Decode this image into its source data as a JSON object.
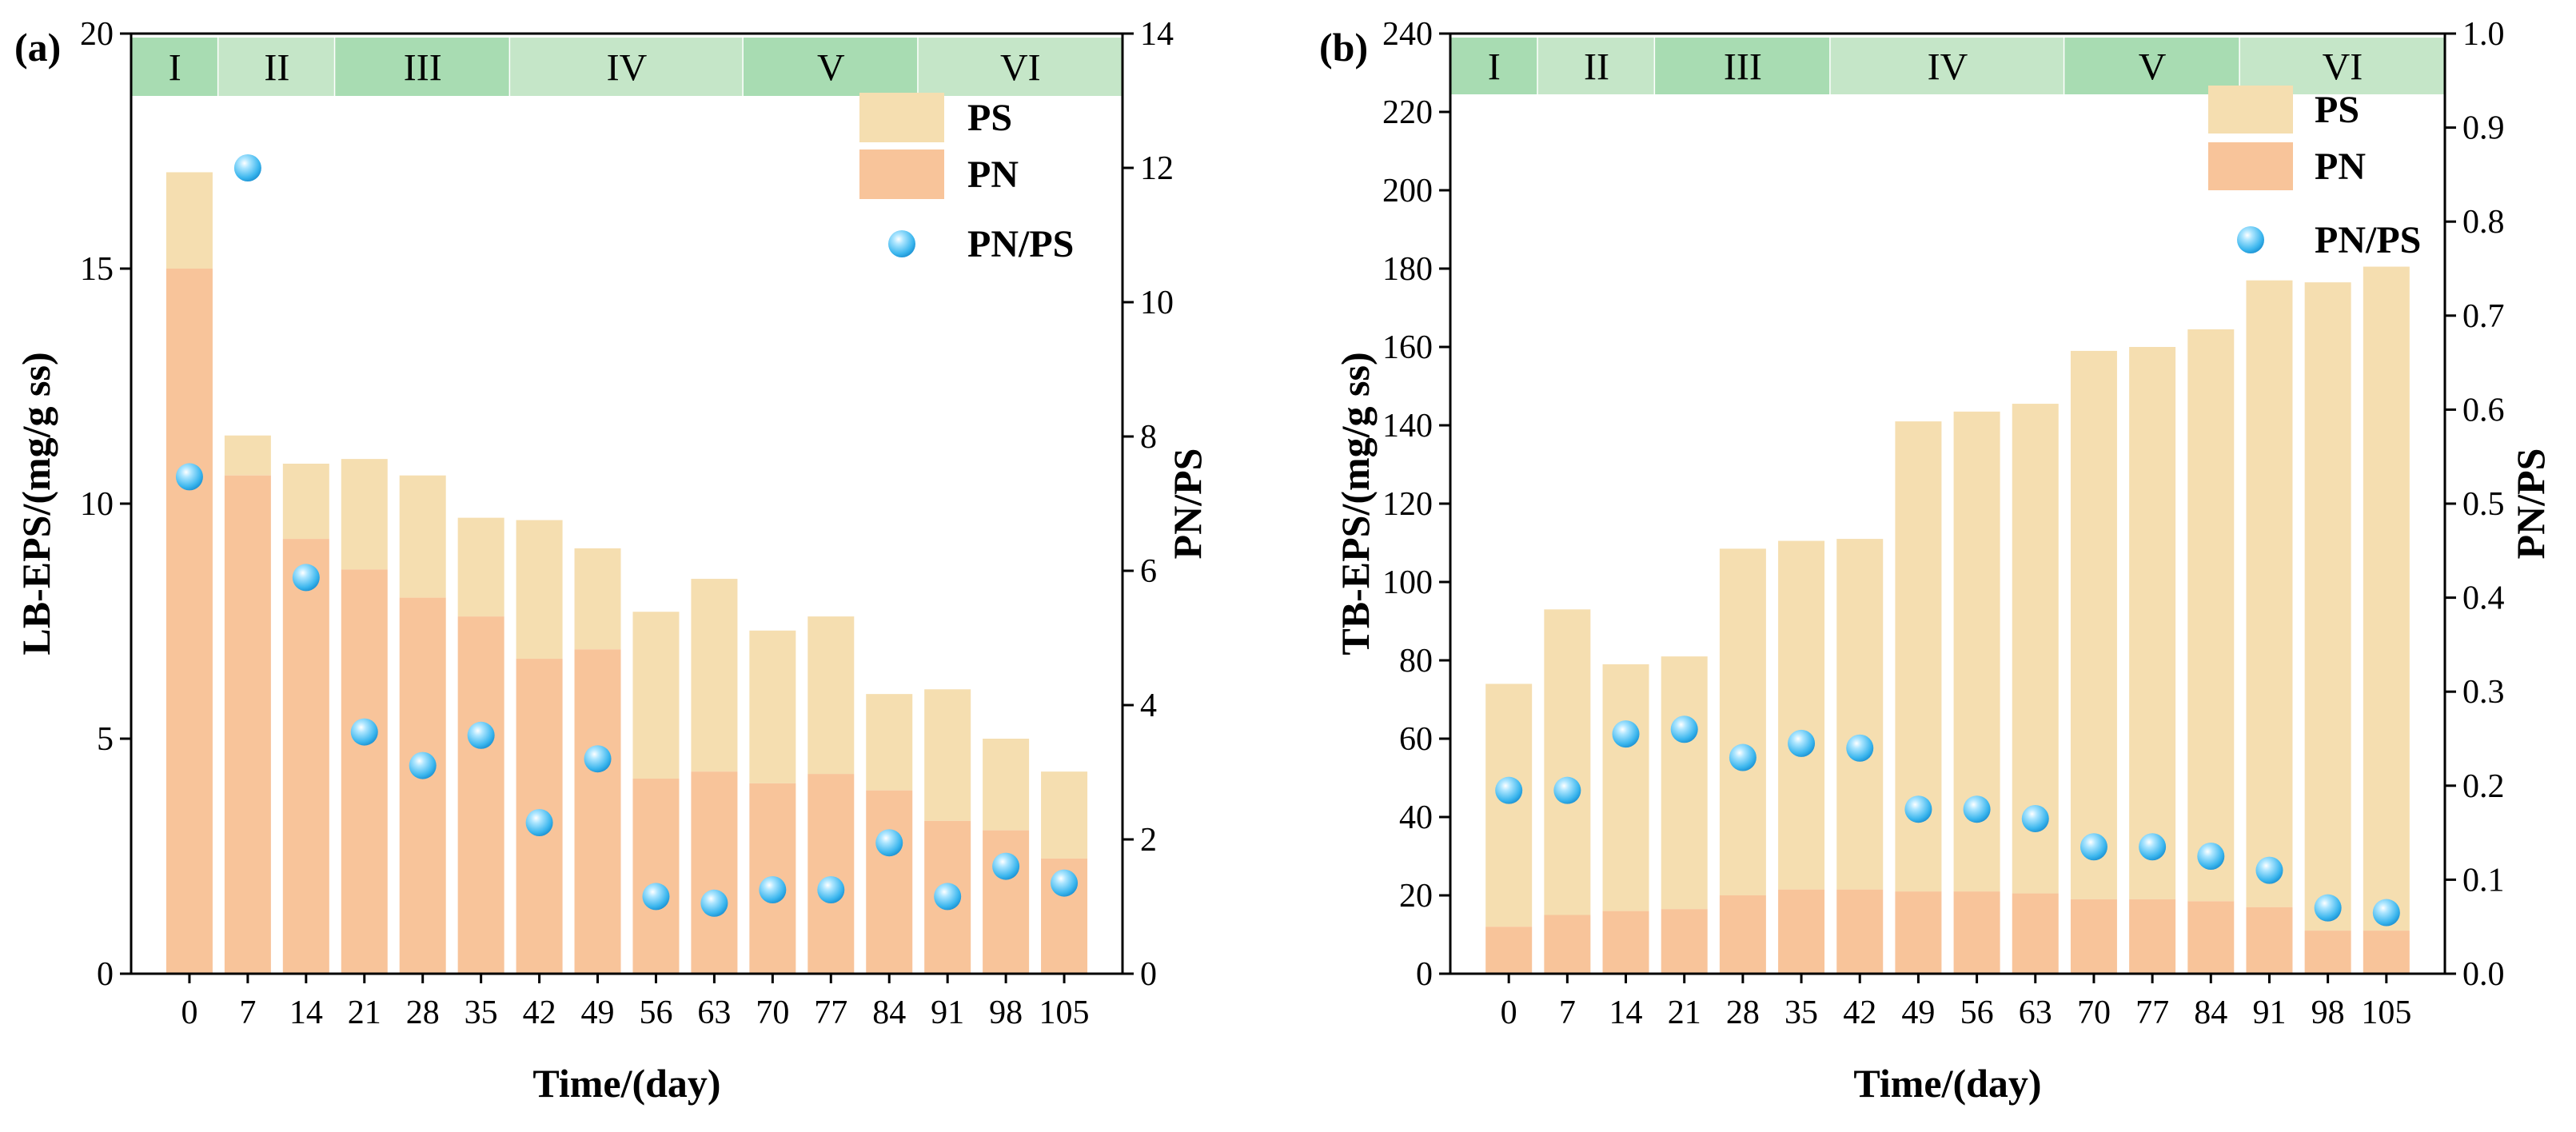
{
  "chart_data": [
    {
      "type": "bar",
      "panel_label": "(a)",
      "stacked": true,
      "categories": [
        "0",
        "7",
        "14",
        "21",
        "28",
        "35",
        "42",
        "49",
        "56",
        "63",
        "70",
        "77",
        "84",
        "91",
        "98",
        "105"
      ],
      "series": [
        {
          "name": "PN",
          "values": [
            15.0,
            10.6,
            9.25,
            8.6,
            8.0,
            7.6,
            6.7,
            6.9,
            4.15,
            4.3,
            4.05,
            4.25,
            3.9,
            3.25,
            3.05,
            2.45
          ],
          "color": "#f8c49a"
        },
        {
          "name": "PS",
          "values": [
            2.05,
            0.85,
            1.6,
            2.35,
            2.6,
            2.1,
            2.95,
            2.15,
            3.55,
            4.1,
            3.25,
            3.35,
            2.05,
            2.8,
            1.95,
            1.85
          ],
          "color": "#f5deb0"
        }
      ],
      "secondary_series": {
        "name": "PN/PS",
        "type": "scatter",
        "values": [
          7.4,
          12.0,
          5.9,
          3.6,
          3.1,
          3.55,
          2.25,
          3.2,
          1.15,
          1.05,
          1.25,
          1.25,
          1.95,
          1.15,
          1.6,
          1.35
        ],
        "color": "#5bc6f3"
      },
      "phases": [
        {
          "label": "I",
          "start": 0,
          "end": 1
        },
        {
          "label": "II",
          "start": 1,
          "end": 3
        },
        {
          "label": "III",
          "start": 3,
          "end": 6
        },
        {
          "label": "IV",
          "start": 6,
          "end": 10
        },
        {
          "label": "V",
          "start": 10,
          "end": 13
        },
        {
          "label": "VI",
          "start": 13,
          "end": 16
        }
      ],
      "phase_colors": [
        "#a8dcb2",
        "#c5e6c8"
      ],
      "xlabel": "Time/(day)",
      "ylabel": "LB-EPS/(mg/g ss)",
      "y2label": "PN/PS",
      "ylim": [
        0,
        20
      ],
      "yticks": [
        "0",
        "5",
        "10",
        "15",
        "20"
      ],
      "y2lim": [
        0,
        14
      ],
      "y2ticks": [
        "0",
        "2",
        "4",
        "6",
        "8",
        "10",
        "12",
        "14"
      ],
      "legend": [
        "PS",
        "PN",
        "PN/PS"
      ],
      "legend_position": "top-right"
    },
    {
      "type": "bar",
      "panel_label": "(b)",
      "stacked": true,
      "categories": [
        "0",
        "7",
        "14",
        "21",
        "28",
        "35",
        "42",
        "49",
        "56",
        "63",
        "70",
        "77",
        "84",
        "91",
        "98",
        "105"
      ],
      "series": [
        {
          "name": "PN",
          "values": [
            12,
            15,
            16,
            16.5,
            20,
            21.5,
            21.5,
            21,
            21,
            20.5,
            19,
            19,
            18.5,
            17,
            11,
            11
          ],
          "color": "#f8c49a"
        },
        {
          "name": "PS",
          "values": [
            62,
            78,
            63,
            64.5,
            88.5,
            89,
            89.5,
            120,
            122.5,
            125,
            140,
            141,
            146,
            160,
            165.5,
            169.5
          ],
          "color": "#f5deb0"
        }
      ],
      "secondary_series": {
        "name": "PN/PS",
        "type": "scatter",
        "values": [
          0.195,
          0.195,
          0.255,
          0.26,
          0.23,
          0.245,
          0.24,
          0.175,
          0.175,
          0.165,
          0.135,
          0.135,
          0.125,
          0.11,
          0.07,
          0.065
        ],
        "color": "#5bc6f3"
      },
      "phases": [
        {
          "label": "I",
          "start": 0,
          "end": 1
        },
        {
          "label": "II",
          "start": 1,
          "end": 3
        },
        {
          "label": "III",
          "start": 3,
          "end": 6
        },
        {
          "label": "IV",
          "start": 6,
          "end": 10
        },
        {
          "label": "V",
          "start": 10,
          "end": 13
        },
        {
          "label": "VI",
          "start": 13,
          "end": 16
        }
      ],
      "phase_colors": [
        "#a8dcb2",
        "#c5e6c8"
      ],
      "xlabel": "Time/(day)",
      "ylabel": "TB-EPS/(mg/g ss)",
      "y2label": "PN/PS",
      "ylim": [
        0,
        240
      ],
      "yticks": [
        "0",
        "20",
        "40",
        "60",
        "80",
        "100",
        "120",
        "140",
        "160",
        "180",
        "200",
        "220",
        "240"
      ],
      "y2lim": [
        0,
        1
      ],
      "y2ticks": [
        "0.0",
        "0.1",
        "0.2",
        "0.3",
        "0.4",
        "0.5",
        "0.6",
        "0.7",
        "0.8",
        "0.9",
        "1.0"
      ],
      "legend": [
        "PS",
        "PN",
        "PN/PS"
      ],
      "legend_position": "top-right"
    }
  ]
}
